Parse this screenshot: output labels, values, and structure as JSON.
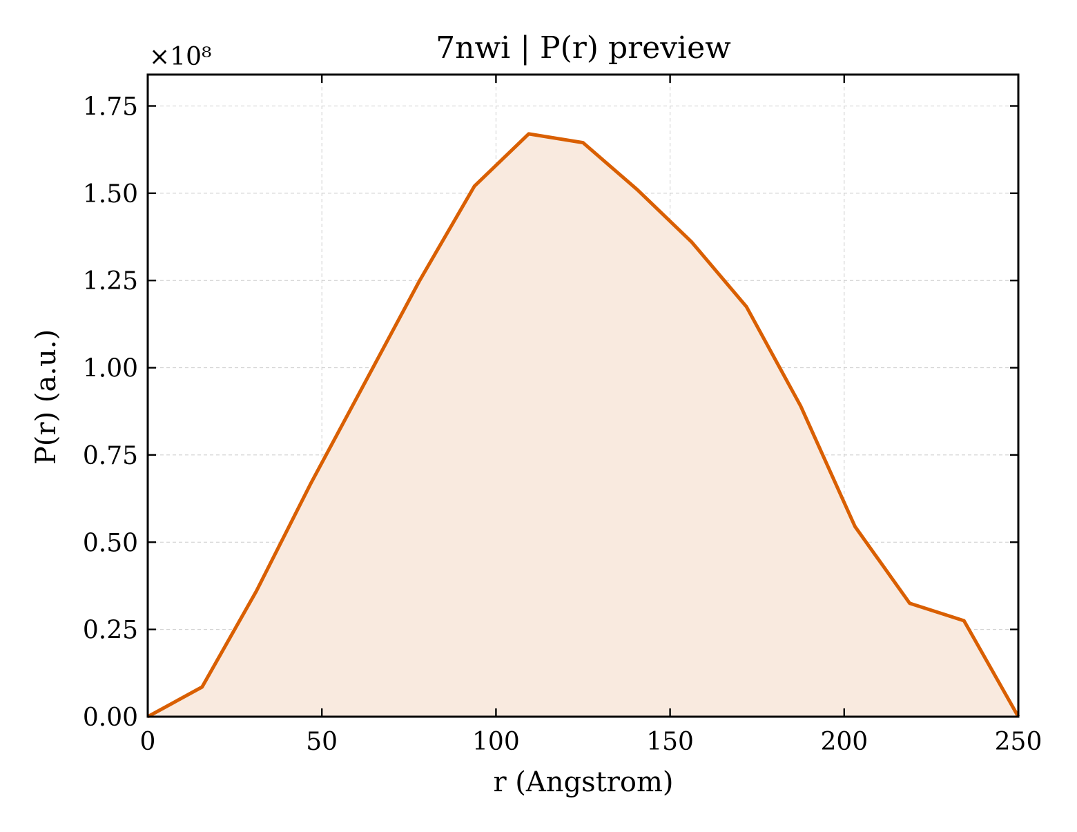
{
  "chart_data": {
    "type": "area",
    "title": "7nwi | P(r) preview",
    "xlabel": "r (Angstrom)",
    "ylabel": "P(r) (a.u.)",
    "y_scale_label": "×10⁸",
    "y_scale_factor": 100000000,
    "xlim": [
      0,
      250
    ],
    "ylim": [
      0,
      1.84
    ],
    "x_ticks": [
      0,
      50,
      100,
      150,
      200,
      250
    ],
    "x_tick_labels": [
      "0",
      "50",
      "100",
      "150",
      "200",
      "250"
    ],
    "y_ticks": [
      0,
      0.25,
      0.5,
      0.75,
      1.0,
      1.25,
      1.5,
      1.75
    ],
    "y_tick_labels": [
      "0.00",
      "0.25",
      "0.50",
      "0.75",
      "1.00",
      "1.25",
      "1.50",
      "1.75"
    ],
    "grid": true,
    "series": [
      {
        "x": [
          0,
          15.6,
          31.2,
          46.9,
          62.5,
          78.1,
          93.8,
          109.4,
          125.0,
          140.6,
          156.2,
          171.9,
          187.5,
          203.1,
          218.8,
          234.4,
          250.0
        ],
        "y": [
          0.0,
          0.085,
          0.36,
          0.67,
          0.96,
          1.25,
          1.52,
          1.67,
          1.645,
          1.51,
          1.36,
          1.175,
          0.89,
          0.545,
          0.325,
          0.275,
          0.0
        ]
      }
    ],
    "colors": {
      "line": "#d95f02",
      "fill": "#f9eadf",
      "grid": "#cccccc",
      "frame": "#000000"
    }
  }
}
